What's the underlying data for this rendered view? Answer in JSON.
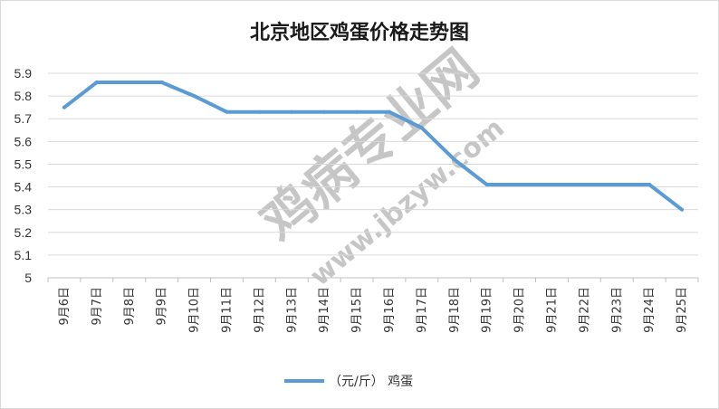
{
  "chart_data": {
    "type": "line",
    "title": "北京地区鸡蛋价格走势图",
    "xlabel": "",
    "ylabel": "",
    "categories": [
      "9月6日",
      "9月7日",
      "9月8日",
      "9月9日",
      "9月10日",
      "9月11日",
      "9月12日",
      "9月13日",
      "9月14日",
      "9月15日",
      "9月16日",
      "9月17日",
      "9月18日",
      "9月19日",
      "9月20日",
      "9月21日",
      "9月22日",
      "9月23日",
      "9月24日",
      "9月25日"
    ],
    "series": [
      {
        "name": "（元/斤） 鸡蛋",
        "color": "#5b9bd5",
        "values": [
          5.75,
          5.86,
          5.86,
          5.86,
          5.8,
          5.73,
          5.73,
          5.73,
          5.73,
          5.73,
          5.73,
          5.66,
          5.52,
          5.41,
          5.41,
          5.41,
          5.41,
          5.41,
          5.41,
          5.3
        ]
      }
    ],
    "yticks": [
      "5.9",
      "5.8",
      "5.7",
      "5.6",
      "5.5",
      "5.4",
      "5.3",
      "5.2",
      "5.1",
      "5"
    ],
    "ylim": [
      5.0,
      5.9
    ],
    "grid": true,
    "legend_position": "bottom"
  },
  "watermark": {
    "main_text": "鸡病专业网",
    "url_text": "www.jbzyw.com",
    "color": "#e8a0a0"
  }
}
